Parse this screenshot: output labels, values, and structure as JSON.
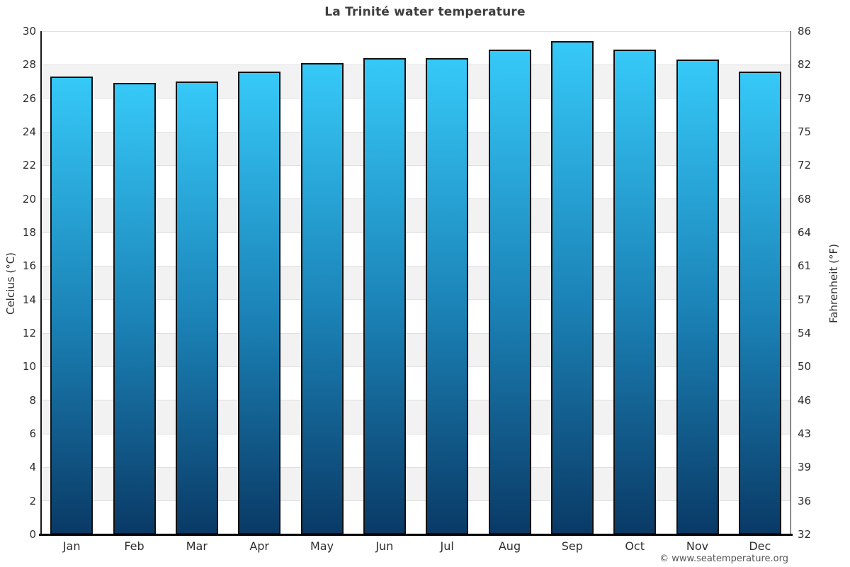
{
  "page": {
    "title": "La Trinité water temperature",
    "watermark": "© www.seatemperature.org"
  },
  "chart_data": {
    "type": "bar",
    "title": "La Trinité water temperature",
    "categories": [
      "Jan",
      "Feb",
      "Mar",
      "Apr",
      "May",
      "Jun",
      "Jul",
      "Aug",
      "Sep",
      "Oct",
      "Nov",
      "Dec"
    ],
    "values": [
      27.3,
      26.9,
      27.0,
      27.6,
      28.1,
      28.4,
      28.4,
      28.9,
      29.4,
      28.9,
      28.3,
      27.6
    ],
    "unit": "°C",
    "ylabel_left": "Celcius (°C)",
    "ylabel_right": "Fahrenheit (°F)",
    "ylim": [
      0,
      30
    ],
    "y2lim": [
      32,
      86
    ],
    "yticks_celsius": [
      30,
      28,
      26,
      24,
      22,
      20,
      18,
      16,
      14,
      12,
      10,
      8,
      6,
      4,
      2,
      0
    ],
    "yticks_fahrenheit": [
      86,
      82,
      79,
      75,
      72,
      68,
      64,
      61,
      57,
      54,
      50,
      46,
      43,
      39,
      36,
      32
    ],
    "legend": "none",
    "grid": "alternating-horizontal-bands",
    "colors": {
      "bar_gradient_top": "#36c9f8",
      "bar_gradient_mid": "#1b82b6",
      "bar_gradient_bottom": "#0a3a66",
      "bar_border": "#111111",
      "band_shaded": "#f2f2f2",
      "band_plain": "#ffffff",
      "gridline": "#e0e0e0",
      "axis_line": "#1a1a1a",
      "title_text": "#3f3f3f",
      "tick_text": "#2e2e2e",
      "watermark_text": "#555555"
    }
  }
}
